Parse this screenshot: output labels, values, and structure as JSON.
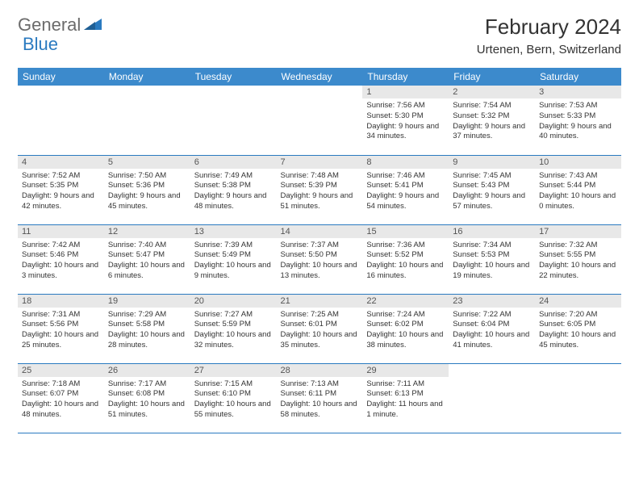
{
  "brand": {
    "part1": "General",
    "part2": "Blue"
  },
  "title": "February 2024",
  "location": "Urtenen, Bern, Switzerland",
  "colors": {
    "header_bg": "#3c8acc",
    "accent": "#2a7ac0",
    "daynum_bg": "#e8e8e8",
    "text": "#333333",
    "logo_gray": "#6b6b6b"
  },
  "weekdays": [
    "Sunday",
    "Monday",
    "Tuesday",
    "Wednesday",
    "Thursday",
    "Friday",
    "Saturday"
  ],
  "weeks": [
    [
      {
        "n": "",
        "sr": "",
        "ss": "",
        "dl": ""
      },
      {
        "n": "",
        "sr": "",
        "ss": "",
        "dl": ""
      },
      {
        "n": "",
        "sr": "",
        "ss": "",
        "dl": ""
      },
      {
        "n": "",
        "sr": "",
        "ss": "",
        "dl": ""
      },
      {
        "n": "1",
        "sr": "Sunrise: 7:56 AM",
        "ss": "Sunset: 5:30 PM",
        "dl": "Daylight: 9 hours and 34 minutes."
      },
      {
        "n": "2",
        "sr": "Sunrise: 7:54 AM",
        "ss": "Sunset: 5:32 PM",
        "dl": "Daylight: 9 hours and 37 minutes."
      },
      {
        "n": "3",
        "sr": "Sunrise: 7:53 AM",
        "ss": "Sunset: 5:33 PM",
        "dl": "Daylight: 9 hours and 40 minutes."
      }
    ],
    [
      {
        "n": "4",
        "sr": "Sunrise: 7:52 AM",
        "ss": "Sunset: 5:35 PM",
        "dl": "Daylight: 9 hours and 42 minutes."
      },
      {
        "n": "5",
        "sr": "Sunrise: 7:50 AM",
        "ss": "Sunset: 5:36 PM",
        "dl": "Daylight: 9 hours and 45 minutes."
      },
      {
        "n": "6",
        "sr": "Sunrise: 7:49 AM",
        "ss": "Sunset: 5:38 PM",
        "dl": "Daylight: 9 hours and 48 minutes."
      },
      {
        "n": "7",
        "sr": "Sunrise: 7:48 AM",
        "ss": "Sunset: 5:39 PM",
        "dl": "Daylight: 9 hours and 51 minutes."
      },
      {
        "n": "8",
        "sr": "Sunrise: 7:46 AM",
        "ss": "Sunset: 5:41 PM",
        "dl": "Daylight: 9 hours and 54 minutes."
      },
      {
        "n": "9",
        "sr": "Sunrise: 7:45 AM",
        "ss": "Sunset: 5:43 PM",
        "dl": "Daylight: 9 hours and 57 minutes."
      },
      {
        "n": "10",
        "sr": "Sunrise: 7:43 AM",
        "ss": "Sunset: 5:44 PM",
        "dl": "Daylight: 10 hours and 0 minutes."
      }
    ],
    [
      {
        "n": "11",
        "sr": "Sunrise: 7:42 AM",
        "ss": "Sunset: 5:46 PM",
        "dl": "Daylight: 10 hours and 3 minutes."
      },
      {
        "n": "12",
        "sr": "Sunrise: 7:40 AM",
        "ss": "Sunset: 5:47 PM",
        "dl": "Daylight: 10 hours and 6 minutes."
      },
      {
        "n": "13",
        "sr": "Sunrise: 7:39 AM",
        "ss": "Sunset: 5:49 PM",
        "dl": "Daylight: 10 hours and 9 minutes."
      },
      {
        "n": "14",
        "sr": "Sunrise: 7:37 AM",
        "ss": "Sunset: 5:50 PM",
        "dl": "Daylight: 10 hours and 13 minutes."
      },
      {
        "n": "15",
        "sr": "Sunrise: 7:36 AM",
        "ss": "Sunset: 5:52 PM",
        "dl": "Daylight: 10 hours and 16 minutes."
      },
      {
        "n": "16",
        "sr": "Sunrise: 7:34 AM",
        "ss": "Sunset: 5:53 PM",
        "dl": "Daylight: 10 hours and 19 minutes."
      },
      {
        "n": "17",
        "sr": "Sunrise: 7:32 AM",
        "ss": "Sunset: 5:55 PM",
        "dl": "Daylight: 10 hours and 22 minutes."
      }
    ],
    [
      {
        "n": "18",
        "sr": "Sunrise: 7:31 AM",
        "ss": "Sunset: 5:56 PM",
        "dl": "Daylight: 10 hours and 25 minutes."
      },
      {
        "n": "19",
        "sr": "Sunrise: 7:29 AM",
        "ss": "Sunset: 5:58 PM",
        "dl": "Daylight: 10 hours and 28 minutes."
      },
      {
        "n": "20",
        "sr": "Sunrise: 7:27 AM",
        "ss": "Sunset: 5:59 PM",
        "dl": "Daylight: 10 hours and 32 minutes."
      },
      {
        "n": "21",
        "sr": "Sunrise: 7:25 AM",
        "ss": "Sunset: 6:01 PM",
        "dl": "Daylight: 10 hours and 35 minutes."
      },
      {
        "n": "22",
        "sr": "Sunrise: 7:24 AM",
        "ss": "Sunset: 6:02 PM",
        "dl": "Daylight: 10 hours and 38 minutes."
      },
      {
        "n": "23",
        "sr": "Sunrise: 7:22 AM",
        "ss": "Sunset: 6:04 PM",
        "dl": "Daylight: 10 hours and 41 minutes."
      },
      {
        "n": "24",
        "sr": "Sunrise: 7:20 AM",
        "ss": "Sunset: 6:05 PM",
        "dl": "Daylight: 10 hours and 45 minutes."
      }
    ],
    [
      {
        "n": "25",
        "sr": "Sunrise: 7:18 AM",
        "ss": "Sunset: 6:07 PM",
        "dl": "Daylight: 10 hours and 48 minutes."
      },
      {
        "n": "26",
        "sr": "Sunrise: 7:17 AM",
        "ss": "Sunset: 6:08 PM",
        "dl": "Daylight: 10 hours and 51 minutes."
      },
      {
        "n": "27",
        "sr": "Sunrise: 7:15 AM",
        "ss": "Sunset: 6:10 PM",
        "dl": "Daylight: 10 hours and 55 minutes."
      },
      {
        "n": "28",
        "sr": "Sunrise: 7:13 AM",
        "ss": "Sunset: 6:11 PM",
        "dl": "Daylight: 10 hours and 58 minutes."
      },
      {
        "n": "29",
        "sr": "Sunrise: 7:11 AM",
        "ss": "Sunset: 6:13 PM",
        "dl": "Daylight: 11 hours and 1 minute."
      },
      {
        "n": "",
        "sr": "",
        "ss": "",
        "dl": ""
      },
      {
        "n": "",
        "sr": "",
        "ss": "",
        "dl": ""
      }
    ]
  ]
}
